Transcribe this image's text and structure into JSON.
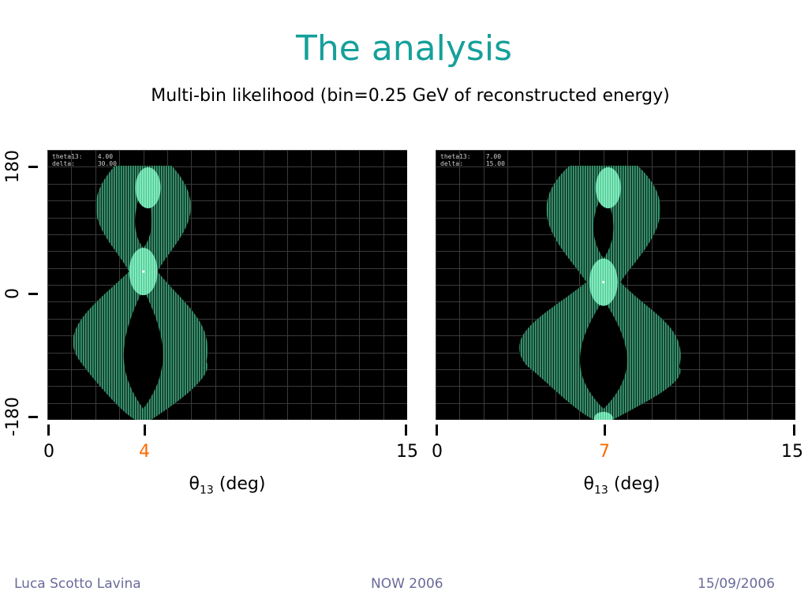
{
  "slide": {
    "title": "The analysis",
    "subtitle": "Multi-bin likelihood (bin=0.25 GeV of reconstructed energy)"
  },
  "colors": {
    "title": "#16a09a",
    "highlight": "#ff6a00",
    "footer": "#6a6a9a",
    "contour_outer": "#3aa37a",
    "contour_inner": "#8ff0c4",
    "grid": "#3a3a3a"
  },
  "y_axis": {
    "tick_labels": [
      "180",
      "0",
      "-180"
    ]
  },
  "panels": [
    {
      "readout": {
        "line1_label": "theta13:",
        "line1_value": "4.00",
        "line2_label": "delta:",
        "line2_value": "30.00"
      },
      "x_axis": {
        "min_label": "0",
        "marked_label": "4",
        "max_label": "15",
        "title_symbol": "θ",
        "title_sub": "13",
        "title_unit": "(deg)"
      },
      "plot": {
        "xlim": [
          0,
          15
        ],
        "ylim": [
          -180,
          180
        ],
        "marked_theta13": 4,
        "marked_delta": 30
      }
    },
    {
      "readout": {
        "line1_label": "theta13:",
        "line1_value": "7.00",
        "line2_label": "delta:",
        "line2_value": "15.00"
      },
      "x_axis": {
        "min_label": "0",
        "marked_label": "7",
        "max_label": "15",
        "title_symbol": "θ",
        "title_sub": "13",
        "title_unit": "(deg)"
      },
      "plot": {
        "xlim": [
          0,
          15
        ],
        "ylim": [
          -180,
          180
        ],
        "marked_theta13": 7,
        "marked_delta": 15
      }
    }
  ],
  "footer": {
    "author": "Luca Scotto Lavina",
    "event": "NOW 2006",
    "date": "15/09/2006"
  }
}
